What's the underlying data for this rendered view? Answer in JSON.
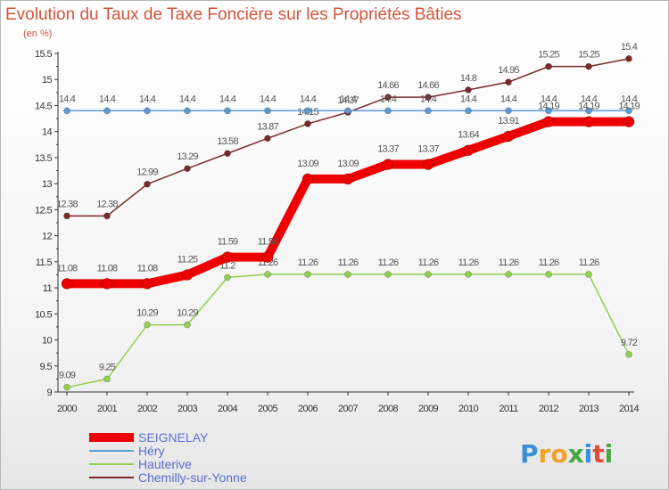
{
  "chart_data": {
    "type": "line",
    "title": "Evolution du Taux de Taxe Foncière sur les Propriétés Bâties",
    "subtitle": "(en %)",
    "x": [
      "2000",
      "2001",
      "2002",
      "2003",
      "2004",
      "2005",
      "2006",
      "2007",
      "2008",
      "2009",
      "2010",
      "2011",
      "2012",
      "2013",
      "2014"
    ],
    "ylim": [
      9,
      15.5
    ],
    "yticks": [
      "9",
      "9.5",
      "10",
      "10.5",
      "11",
      "11.5",
      "12",
      "12.5",
      "13",
      "13.5",
      "14",
      "14.5",
      "15",
      "15.5"
    ],
    "grid": false,
    "legend_position": "bottom-left",
    "series": [
      {
        "name": "Chemilly-sur-Yonne",
        "color": "#7a2a2a",
        "values": [
          12.38,
          12.38,
          12.99,
          13.29,
          13.58,
          13.87,
          14.15,
          14.37,
          14.66,
          14.66,
          14.8,
          14.95,
          15.25,
          15.25,
          15.4
        ],
        "labels": [
          "12.38",
          "12.38",
          "12.99",
          "13.29",
          "13.58",
          "13.87",
          "14.15",
          "14.37",
          "14.66",
          "14.66",
          "14.8",
          "14.95",
          "15.25",
          "15.25",
          "15.4"
        ]
      },
      {
        "name": "Héry",
        "color": "#5b9bd5",
        "values": [
          14.4,
          14.4,
          14.4,
          14.4,
          14.4,
          14.4,
          14.4,
          14.4,
          14.4,
          14.4,
          14.4,
          14.4,
          14.4,
          14.4,
          14.4
        ],
        "labels": [
          "14.4",
          "14.4",
          "14.4",
          "14.4",
          "14.4",
          "14.4",
          "14.4",
          "14.4",
          "14.4",
          "14.4",
          "14.4",
          "14.4",
          "14.4",
          "14.4",
          "14.4"
        ]
      },
      {
        "name": "Hauterive",
        "color": "#92d050",
        "values": [
          9.09,
          9.25,
          10.29,
          10.29,
          11.2,
          11.26,
          11.26,
          11.26,
          11.26,
          11.26,
          11.26,
          11.26,
          11.26,
          11.26,
          9.72
        ],
        "labels": [
          "9.09",
          "9.25",
          "10.29",
          "10.29",
          "11.2",
          "11.26",
          "11.26",
          "11.26",
          "11.26",
          "11.26",
          "11.26",
          "11.26",
          "11.26",
          "11.26",
          "9.72"
        ]
      },
      {
        "name": "SEIGNELAY",
        "color": "#ee0000",
        "values": [
          11.08,
          11.08,
          11.08,
          11.25,
          11.59,
          11.59,
          13.09,
          13.09,
          13.37,
          13.37,
          13.64,
          13.91,
          14.19,
          14.19,
          14.19
        ],
        "labels": [
          "11.08",
          "11.08",
          "11.08",
          "11.25",
          "11.59",
          "11.59",
          "13.09",
          "13.09",
          "13.37",
          "13.37",
          "13.64",
          "13.91",
          "14.19",
          "14.19",
          "14.19"
        ]
      }
    ],
    "legend": [
      "SEIGNELAY",
      "Héry",
      "Hauterive",
      "Chemilly-sur-Yonne"
    ]
  },
  "logo": {
    "letters": [
      "P",
      "r",
      "o",
      "x",
      "i",
      "t",
      "i"
    ],
    "colors": [
      "#3a8fd8",
      "#f2a12a",
      "#f2a12a",
      "#49a742",
      "#3a8fd8",
      "#e64a3b",
      "#49a742"
    ]
  }
}
